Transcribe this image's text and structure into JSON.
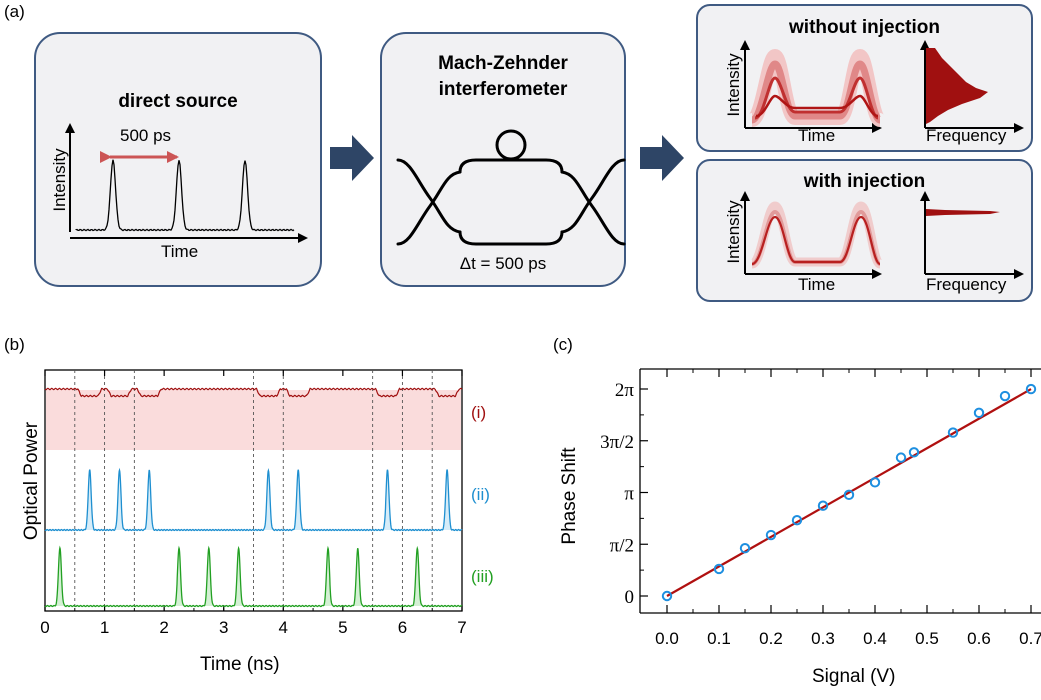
{
  "panels": {
    "a": "(a)",
    "b": "(b)",
    "c": "(c)"
  },
  "direct_source": {
    "title": "direct source",
    "period_label": "500 ps",
    "ylabel": "Intensity",
    "xlabel": "Time"
  },
  "mzi": {
    "title_line1": "Mach-Zehnder",
    "title_line2": "interferometer",
    "delay_label": "Δt = 500 ps"
  },
  "without_injection": {
    "title": "without injection",
    "ylabel": "Intensity",
    "xlabel_left": "Time",
    "xlabel_right": "Frequency"
  },
  "with_injection": {
    "title": "with injection",
    "ylabel": "Intensity",
    "xlabel_left": "Time",
    "xlabel_right": "Frequency"
  },
  "colors": {
    "box_border": "#3f5a82",
    "arrow": "#2e4566",
    "red": "#a01010",
    "blue": "#1e8fd0",
    "green": "#22a022"
  },
  "chart_data": [
    {
      "type": "line",
      "xlabel": "Time (ns)",
      "ylabel": "Optical Power",
      "xlim": [
        0,
        7
      ],
      "x_ticks": [
        "0",
        "1",
        "2",
        "3",
        "4",
        "5",
        "6",
        "7"
      ],
      "dashed_lines_x": [
        0.5,
        1.0,
        1.5,
        3.5,
        4.0,
        5.5,
        6.0,
        6.5
      ],
      "series": [
        {
          "name": "(i)",
          "color": "#a01010",
          "dips_at": [
            0.75,
            1.25,
            1.75,
            3.75,
            4.25,
            5.75,
            6.75
          ]
        },
        {
          "name": "(ii)",
          "color": "#1e8fd0",
          "pulses_at": [
            0.75,
            1.25,
            1.75,
            3.75,
            4.25,
            5.75,
            6.75
          ]
        },
        {
          "name": "(iii)",
          "color": "#22a022",
          "pulses_at": [
            0.25,
            2.25,
            2.75,
            3.25,
            4.75,
            5.25,
            6.25
          ]
        }
      ]
    },
    {
      "type": "scatter",
      "xlabel": "Signal (V)",
      "ylabel": "Phase Shift",
      "xlim": [
        -0.05,
        0.7
      ],
      "ylim": [
        0,
        6.2832
      ],
      "x_ticks": [
        "0.0",
        "0.1",
        "0.2",
        "0.3",
        "0.4",
        "0.5",
        "0.6",
        "0.7"
      ],
      "y_ticks": [
        "0",
        "π/2",
        "π",
        "3π/2",
        "2π"
      ],
      "points": [
        [
          0.0,
          0.0
        ],
        [
          0.1,
          0.82
        ],
        [
          0.15,
          1.45
        ],
        [
          0.2,
          1.85
        ],
        [
          0.25,
          2.3
        ],
        [
          0.3,
          2.74
        ],
        [
          0.35,
          3.07
        ],
        [
          0.4,
          3.45
        ],
        [
          0.45,
          4.2
        ],
        [
          0.475,
          4.36
        ],
        [
          0.55,
          4.96
        ],
        [
          0.6,
          5.56
        ],
        [
          0.65,
          6.07
        ],
        [
          0.7,
          6.28
        ]
      ],
      "fit_line": [
        [
          0.0,
          0.0
        ],
        [
          0.7,
          6.28
        ]
      ]
    }
  ]
}
